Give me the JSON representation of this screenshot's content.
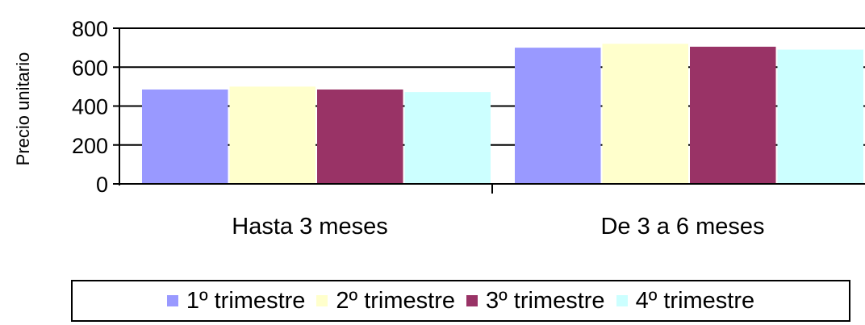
{
  "chart_data": {
    "type": "bar",
    "categories": [
      "Hasta 3 meses",
      "De 3 a 6 meses"
    ],
    "series": [
      {
        "name": "1º trimestre",
        "values": [
          485,
          700
        ],
        "color": "#9999ff"
      },
      {
        "name": "2º trimestre",
        "values": [
          500,
          720
        ],
        "color": "#ffffcc"
      },
      {
        "name": "3º trimestre",
        "values": [
          485,
          705
        ],
        "color": "#993366"
      },
      {
        "name": "4º trimestre",
        "values": [
          472,
          690
        ],
        "color": "#ccffff"
      }
    ],
    "ylabel": "Precio unitario",
    "xlabel": "",
    "ylim": [
      0,
      800
    ],
    "yticks": [
      "0",
      "200",
      "400",
      "600",
      "800"
    ],
    "grid": true,
    "legend_position": "bottom"
  }
}
